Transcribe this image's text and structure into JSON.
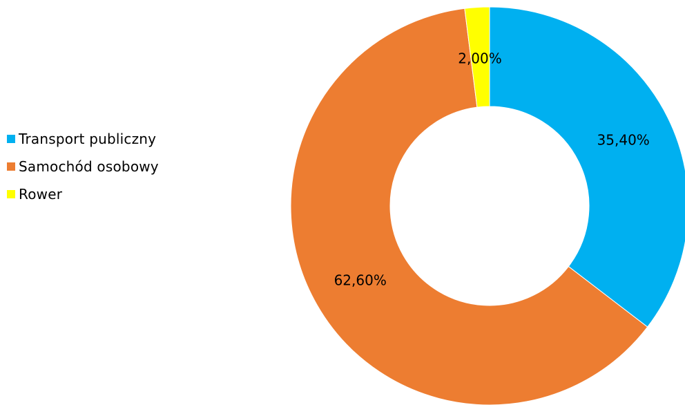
{
  "chart_data": {
    "type": "pie",
    "variant": "donut",
    "title": "",
    "categories": [
      "Transport publiczny",
      "Samochód osobowy",
      "Rower"
    ],
    "values": [
      35.4,
      62.6,
      2.0
    ],
    "labels": [
      "35,40%",
      "62,60%",
      "2,00%"
    ],
    "colors": [
      "#00B0F0",
      "#ED7D31",
      "#FFFF00"
    ],
    "legend_position": "left"
  }
}
